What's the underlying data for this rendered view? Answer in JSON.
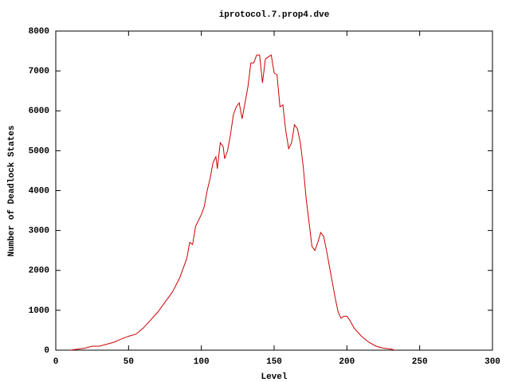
{
  "chart_data": {
    "type": "line",
    "title": "iprotocol.7.prop4.dve",
    "x_label": "Level",
    "y_label": "Number of Deadlock States",
    "color": "#cc0000",
    "x": [
      10,
      20,
      25,
      30,
      35,
      40,
      45,
      50,
      55,
      60,
      65,
      70,
      75,
      80,
      85,
      90,
      92,
      94,
      96,
      98,
      100,
      102,
      104,
      106,
      108,
      110,
      111,
      113,
      115,
      116,
      118,
      120,
      122,
      124,
      126,
      128,
      130,
      132,
      134,
      136,
      138,
      140,
      142,
      144,
      146,
      148,
      150,
      152,
      154,
      156,
      158,
      160,
      162,
      164,
      166,
      168,
      170,
      172,
      174,
      176,
      178,
      180,
      182,
      184,
      186,
      188,
      190,
      192,
      194,
      196,
      198,
      200,
      202,
      205,
      210,
      215,
      220,
      225,
      230,
      233
    ],
    "values": [
      0,
      50,
      100,
      100,
      150,
      200,
      280,
      350,
      400,
      550,
      750,
      950,
      1200,
      1450,
      1800,
      2300,
      2700,
      2650,
      3100,
      3250,
      3400,
      3600,
      4000,
      4300,
      4700,
      4850,
      4550,
      5200,
      5100,
      4800,
      5000,
      5400,
      5900,
      6100,
      6200,
      5800,
      6200,
      6600,
      7200,
      7200,
      7400,
      7400,
      6700,
      7300,
      7350,
      7400,
      6950,
      6900,
      6100,
      6150,
      5500,
      5050,
      5200,
      5650,
      5550,
      5200,
      4600,
      3800,
      3200,
      2600,
      2500,
      2700,
      2950,
      2850,
      2500,
      2100,
      1700,
      1300,
      950,
      800,
      850,
      850,
      750,
      550,
      350,
      200,
      100,
      50,
      30,
      0
    ],
    "xlim": [
      0,
      300
    ],
    "ylim": [
      0,
      8000
    ],
    "xticks": [
      0,
      50,
      100,
      150,
      200,
      250,
      300
    ],
    "yticks": [
      0,
      1000,
      2000,
      3000,
      4000,
      5000,
      6000,
      7000,
      8000
    ]
  }
}
